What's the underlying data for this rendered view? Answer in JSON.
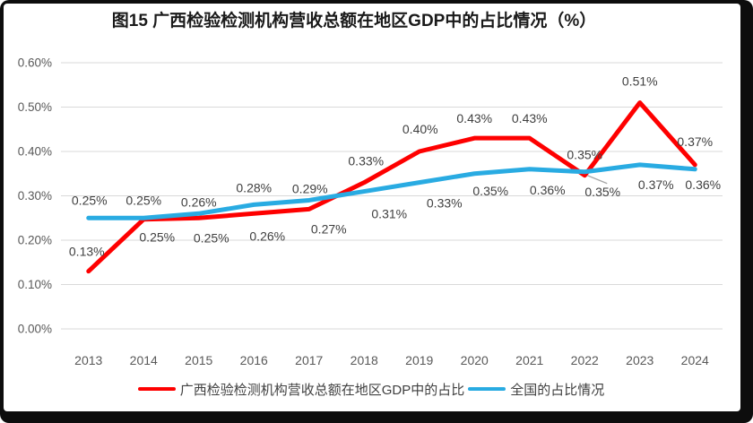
{
  "chart_data": {
    "type": "line",
    "title": "图15 广西检验检测机构营收总额在地区GDP中的占比情况（%）",
    "categories": [
      "2013",
      "2014",
      "2015",
      "2016",
      "2017",
      "2018",
      "2019",
      "2020",
      "2021",
      "2022",
      "2023",
      "2024"
    ],
    "series": [
      {
        "name": "广西检验检测机构营收总额在地区GDP中的占比",
        "color": "#FE0000",
        "values": [
          0.13,
          0.25,
          0.25,
          0.26,
          0.27,
          0.33,
          0.4,
          0.43,
          0.43,
          0.35,
          0.51,
          0.37
        ],
        "labels": [
          "0.13%",
          "0.25%",
          "0.25%",
          "0.26%",
          "0.27%",
          "0.33%",
          "0.40%",
          "0.43%",
          "0.43%",
          "0.35%",
          "0.51%",
          "0.37%"
        ]
      },
      {
        "name": "全国的占比情况",
        "color": "#29ABE2",
        "values": [
          0.25,
          0.25,
          0.26,
          0.28,
          0.29,
          0.31,
          0.33,
          0.35,
          0.36,
          0.35,
          0.37,
          0.36
        ],
        "labels": [
          "0.25%",
          "0.25%",
          "0.26%",
          "0.28%",
          "0.29%",
          "0.31%",
          "0.33%",
          "0.35%",
          "0.36%",
          "0.35%",
          "0.37%",
          "0.36%"
        ]
      }
    ],
    "xlabel": "",
    "ylabel": "",
    "ylim": [
      0,
      0.6
    ],
    "yticks": [
      "0.00%",
      "0.10%",
      "0.20%",
      "0.30%",
      "0.40%",
      "0.50%",
      "0.60%"
    ],
    "grid": true,
    "legend_position": "bottom",
    "layout_hints": {
      "label_offsets": [
        [
          [
            -2,
            -22
          ],
          [
            15,
            20
          ],
          [
            14,
            22
          ],
          [
            15,
            25
          ],
          [
            22,
            22
          ],
          [
            2,
            -24
          ],
          [
            1,
            -25
          ],
          [
            0,
            -22
          ],
          [
            0,
            -22
          ],
          [
            0,
            -23
          ],
          [
            0,
            -24
          ],
          [
            0,
            -26
          ]
        ],
        [
          [
            1,
            -20
          ],
          [
            0,
            -20
          ],
          [
            0,
            -13
          ],
          [
            0,
            -19
          ],
          [
            1,
            -13
          ],
          [
            28,
            25
          ],
          [
            28,
            23
          ],
          [
            18,
            19
          ],
          [
            20,
            23
          ],
          [
            20,
            22
          ],
          [
            18,
            22
          ],
          [
            9,
            17
          ]
        ]
      ],
      "value_render_overrides": [
        {
          "series": 0,
          "index": 9,
          "value": 0.346
        },
        {
          "series": 1,
          "index": 9,
          "value": 0.354
        },
        {
          "series": 0,
          "index": 1,
          "value": 0.247
        }
      ],
      "leader_line": {
        "series": 1,
        "index": 9,
        "dx1": 3,
        "dy1": 4,
        "dx2": 25,
        "dy2": 13
      }
    },
    "style": {
      "grid_color": "#D9D9D9",
      "tick_color": "#595959",
      "data_label_color": "#3F3F3F",
      "legend_text_color": "#404040",
      "title_color": "#1A1A1A",
      "leader_color": "#A6A6A6",
      "frame_color": "#0D0D0D",
      "background": "#FFFFFF"
    }
  }
}
